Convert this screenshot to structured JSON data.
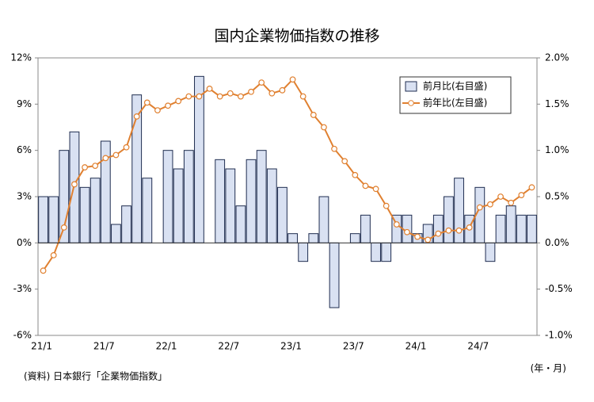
{
  "chart_data": {
    "type": "bar",
    "title": "国内企業物価指数の推移",
    "categories": [
      "21/1",
      null,
      null,
      null,
      null,
      null,
      "21/7",
      null,
      null,
      null,
      null,
      null,
      "22/1",
      null,
      null,
      null,
      null,
      null,
      "22/7",
      null,
      null,
      null,
      null,
      null,
      "23/1",
      null,
      null,
      null,
      null,
      null,
      "23/7",
      null,
      null,
      null,
      null,
      null,
      "24/1",
      null,
      null,
      null,
      null,
      null,
      "24/7",
      null,
      null,
      null,
      null,
      null
    ],
    "series": [
      {
        "name": "前月比(右目盛)",
        "type": "bar",
        "axis": "y2",
        "color": "#d9e1f2",
        "stroke": "#1f2d50",
        "values": [
          0.5,
          0.5,
          1.0,
          1.2,
          0.6,
          0.7,
          1.1,
          0.2,
          0.4,
          1.6,
          0.7,
          0,
          1.0,
          0.8,
          1.0,
          1.8,
          0,
          0.9,
          0.8,
          0.4,
          0.9,
          1.0,
          0.8,
          0.6,
          0.1,
          -0.2,
          0.1,
          0.5,
          -0.7,
          0,
          0.1,
          0.3,
          -0.2,
          -0.2,
          0.3,
          0.3,
          0.1,
          0.2,
          0.3,
          0.5,
          0.7,
          0.3,
          0.6,
          -0.2,
          0.3,
          0.4,
          0.3,
          0.3
        ]
      },
      {
        "name": "前年比(左目盛)",
        "type": "line",
        "axis": "y",
        "color": "#e08030",
        "values": [
          -1.8,
          -0.8,
          1.0,
          3.8,
          4.9,
          5.0,
          5.5,
          5.7,
          6.2,
          8.2,
          9.1,
          8.6,
          8.9,
          9.2,
          9.5,
          9.5,
          10.0,
          9.5,
          9.7,
          9.5,
          9.8,
          10.4,
          9.7,
          9.9,
          10.6,
          9.5,
          8.3,
          7.5,
          6.1,
          5.3,
          4.4,
          3.7,
          3.5,
          2.4,
          1.2,
          0.7,
          0.4,
          0.2,
          0.6,
          0.8,
          0.8,
          1.0,
          2.3,
          2.5,
          3.0,
          2.6,
          3.1,
          3.6
        ]
      }
    ],
    "ylim": [
      -6,
      12
    ],
    "yticks": [
      {
        "value": -6,
        "label": "-6%"
      },
      {
        "value": -3,
        "label": "-3%"
      },
      {
        "value": 0,
        "label": "0%"
      },
      {
        "value": 3,
        "label": "3%"
      },
      {
        "value": 6,
        "label": "6%"
      },
      {
        "value": 9,
        "label": "9%"
      },
      {
        "value": 12,
        "label": "12%"
      }
    ],
    "y2lim": [
      -1.0,
      2.0
    ],
    "y2ticks": [
      {
        "value": -1.0,
        "label": "-1.0%"
      },
      {
        "value": -0.5,
        "label": "-0.5%"
      },
      {
        "value": 0,
        "label": "0.0%"
      },
      {
        "value": 0.5,
        "label": "0.5%"
      },
      {
        "value": 1.0,
        "label": "1.0%"
      },
      {
        "value": 1.5,
        "label": "1.5%"
      },
      {
        "value": 2.0,
        "label": "2.0%"
      }
    ],
    "source": "(資料) 日本銀行「企業物価指数」",
    "x_label": "(年・月)",
    "legend": "upper right"
  }
}
